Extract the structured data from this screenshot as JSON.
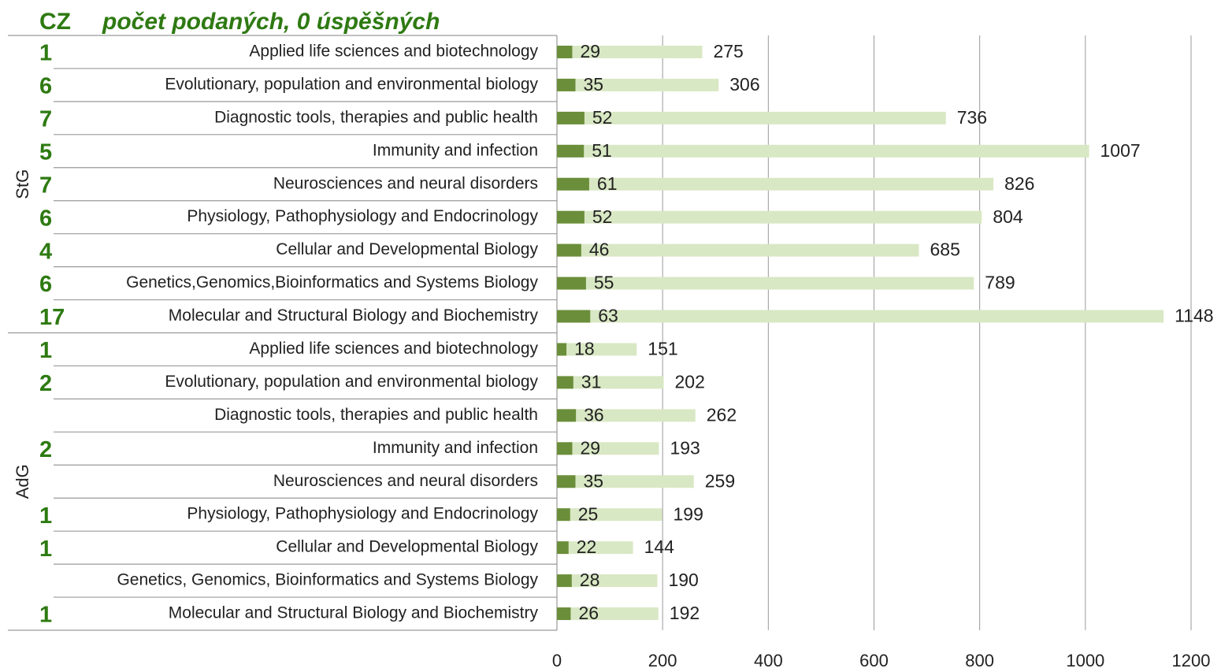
{
  "chart_data": {
    "type": "bar",
    "title": "CZ",
    "subtitle": "počet podaných, 0 úspěšných",
    "groups": [
      "StG",
      "AdG"
    ],
    "categories": [
      "Applied life sciences and biotechnology",
      "Evolutionary, population and environmental biology",
      "Diagnostic tools, therapies and public health",
      "Immunity and infection",
      "Neurosciences and neural disorders",
      "Physiology, Pathophysiology and Endocrinology",
      "Cellular and Developmental Biology",
      "Genetics,Genomics,Bioinformatics and Systems Biology",
      "Molecular and Structural Biology and Biochemistry",
      "Applied life sciences and biotechnology",
      "Evolutionary, population and environmental biology",
      "Diagnostic tools, therapies and public health",
      "Immunity and infection",
      "Neurosciences and neural disorders",
      "Physiology, Pathophysiology and Endocrinology",
      "Cellular and Developmental Biology",
      "Genetics, Genomics, Bioinformatics and Systems Biology",
      "Molecular and Structural Biology and Biochemistry"
    ],
    "cz_counts": [
      1,
      6,
      7,
      5,
      7,
      6,
      4,
      6,
      17,
      1,
      2,
      null,
      2,
      null,
      1,
      1,
      null,
      1
    ],
    "series": [
      {
        "color": "#d9e8c4",
        "values": [
          275,
          306,
          736,
          1007,
          826,
          804,
          685,
          789,
          1148,
          151,
          202,
          262,
          193,
          259,
          199,
          144,
          190,
          192
        ]
      },
      {
        "color": "#6b8e3a",
        "values": [
          29,
          35,
          52,
          51,
          61,
          52,
          46,
          55,
          63,
          18,
          31,
          36,
          29,
          35,
          25,
          22,
          28,
          26
        ]
      }
    ],
    "xlim": [
      0,
      1200
    ],
    "xticks": [
      0,
      200,
      400,
      600,
      800,
      1000,
      1200
    ],
    "grid": true
  }
}
